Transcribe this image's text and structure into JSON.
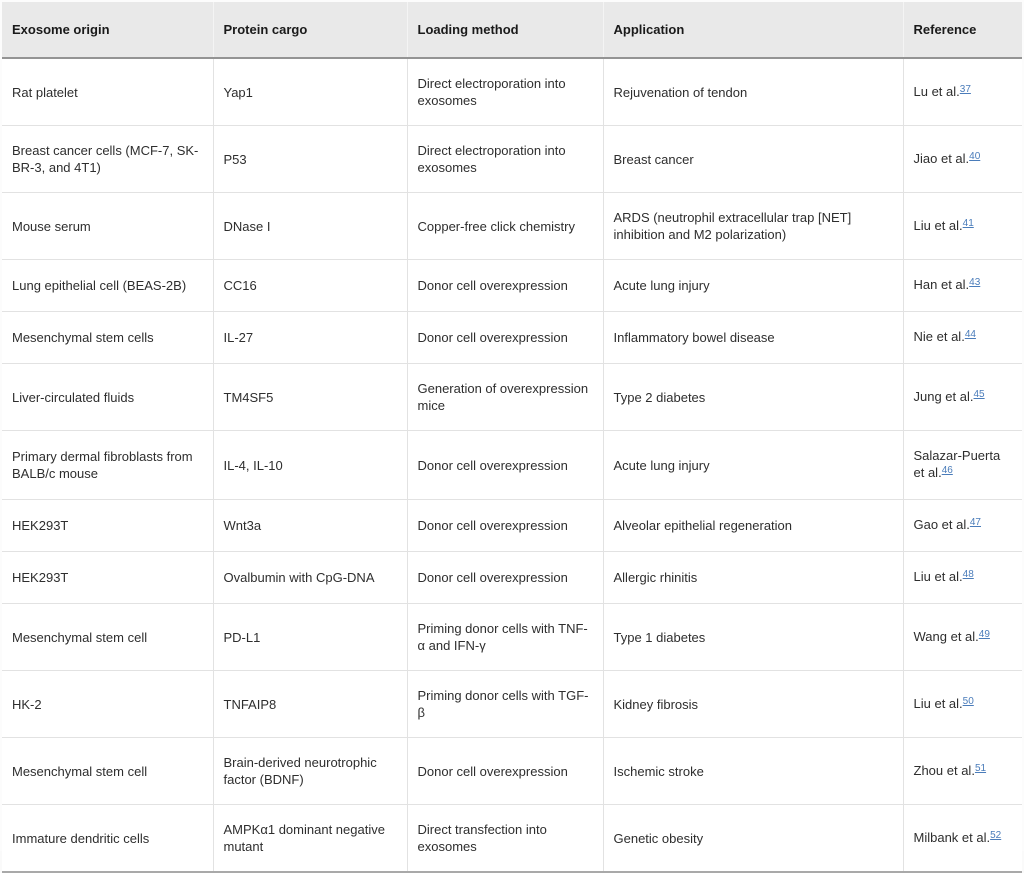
{
  "table": {
    "columns": [
      "Exosome origin",
      "Protein cargo",
      "Loading method",
      "Application",
      "Reference"
    ],
    "rows": [
      {
        "origin": "Rat platelet",
        "cargo": "Yap1",
        "loading": "Direct electroporation into exosomes",
        "application": "Rejuvenation of tendon",
        "ref_text": "Lu et al.",
        "ref_num": "37"
      },
      {
        "origin": "Breast cancer cells (MCF-7, SK-BR-3, and 4T1)",
        "cargo": "P53",
        "loading": "Direct electroporation into exosomes",
        "application": "Breast cancer",
        "ref_text": "Jiao et al.",
        "ref_num": "40"
      },
      {
        "origin": "Mouse serum",
        "cargo": "DNase I",
        "loading": "Copper-free click chemistry",
        "application": "ARDS (neutrophil extracellular trap [NET] inhibition and M2 polarization)",
        "ref_text": "Liu et al.",
        "ref_num": "41"
      },
      {
        "origin": "Lung epithelial cell (BEAS-2B)",
        "cargo": "CC16",
        "loading": "Donor cell overexpression",
        "application": "Acute lung injury",
        "ref_text": "Han et al.",
        "ref_num": "43"
      },
      {
        "origin": "Mesenchymal stem cells",
        "cargo": "IL-27",
        "loading": "Donor cell overexpression",
        "application": "Inflammatory bowel disease",
        "ref_text": "Nie et al.",
        "ref_num": "44"
      },
      {
        "origin": "Liver-circulated fluids",
        "cargo": "TM4SF5",
        "loading": "Generation of overexpression mice",
        "application": "Type 2 diabetes",
        "ref_text": "Jung et al.",
        "ref_num": "45"
      },
      {
        "origin": "Primary dermal fibroblasts from BALB/c mouse",
        "cargo": "IL-4, IL-10",
        "loading": "Donor cell overexpression",
        "application": "Acute lung injury",
        "ref_text": "Salazar-Puerta et al.",
        "ref_num": "46"
      },
      {
        "origin": "HEK293T",
        "cargo": "Wnt3a",
        "loading": "Donor cell overexpression",
        "application": "Alveolar epithelial regeneration",
        "ref_text": "Gao et al.",
        "ref_num": "47"
      },
      {
        "origin": "HEK293T",
        "cargo": "Ovalbumin with CpG-DNA",
        "loading": "Donor cell overexpression",
        "application": "Allergic rhinitis",
        "ref_text": "Liu et al.",
        "ref_num": "48"
      },
      {
        "origin": "Mesenchymal stem cell",
        "cargo": "PD-L1",
        "loading": "Priming donor cells with TNF-α and IFN-γ",
        "application": "Type 1 diabetes",
        "ref_text": "Wang et al.",
        "ref_num": "49"
      },
      {
        "origin": "HK-2",
        "cargo": "TNFAIP8",
        "loading": "Priming donor cells with TGF-β",
        "application": "Kidney fibrosis",
        "ref_text": "Liu et al.",
        "ref_num": "50"
      },
      {
        "origin": "Mesenchymal stem cell",
        "cargo": "Brain-derived neurotrophic factor (BDNF)",
        "loading": "Donor cell overexpression",
        "application": "Ischemic stroke",
        "ref_text": "Zhou et al.",
        "ref_num": "51"
      },
      {
        "origin": "Immature dendritic cells",
        "cargo": "AMPKα1 dominant negative mutant",
        "loading": "Direct transfection into exosomes",
        "application": "Genetic obesity",
        "ref_text": "Milbank et al.",
        "ref_num": "52"
      }
    ]
  },
  "colors": {
    "header_bg": "#e9e9e9",
    "header_rule": "#949494",
    "row_rule": "#e2e2e2",
    "body_text": "#2e2e2e",
    "link_blue": "#4a7cba"
  }
}
